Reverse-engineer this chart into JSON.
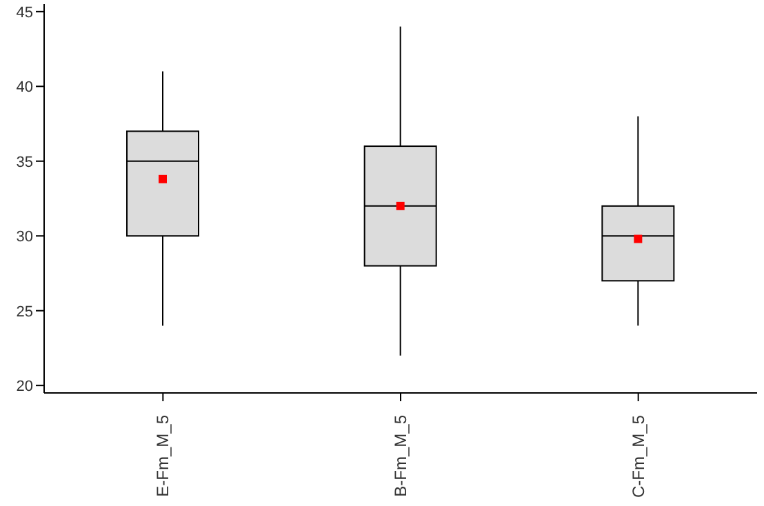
{
  "chart_data": {
    "type": "box",
    "categories": [
      "E-Fm_M_5",
      "B-Fm_M_5",
      "C-Fm_M_5"
    ],
    "boxes": [
      {
        "low": 24,
        "q1": 30,
        "median": 35,
        "q3": 37,
        "high": 41,
        "mean": 33.8
      },
      {
        "low": 22,
        "q1": 28,
        "median": 32,
        "q3": 36,
        "high": 44,
        "mean": 32
      },
      {
        "low": 24,
        "q1": 27,
        "median": 30,
        "q3": 32,
        "high": 38,
        "mean": 29.8
      }
    ],
    "color": "#dcdcdc",
    "ylim": [
      19.5,
      45.5
    ],
    "yticks": [
      20,
      25,
      30,
      35,
      40,
      45
    ],
    "grid": false
  }
}
